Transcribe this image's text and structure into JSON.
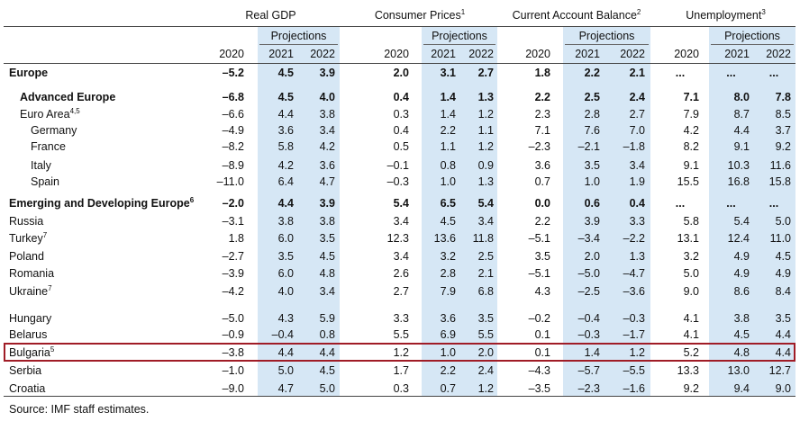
{
  "groups": [
    {
      "label": "Real GDP",
      "sup": ""
    },
    {
      "label": "Consumer Prices",
      "sup": "1"
    },
    {
      "label": "Current Account Balance",
      "sup": "2"
    },
    {
      "label": "Unemployment",
      "sup": "3"
    }
  ],
  "projections_label": "Projections",
  "years": [
    "2020",
    "2021",
    "2022"
  ],
  "rows": [
    {
      "name": "Europe",
      "sup": "",
      "bold": true,
      "indent": 0,
      "values": [
        "–5.2",
        "4.5",
        "3.9",
        "2.0",
        "3.1",
        "2.7",
        "1.8",
        "2.2",
        "2.1",
        "...",
        "...",
        "..."
      ]
    },
    {
      "name": "Advanced Europe",
      "sup": "",
      "bold": true,
      "indent": 1,
      "values": [
        "–6.8",
        "4.5",
        "4.0",
        "0.4",
        "1.4",
        "1.3",
        "2.2",
        "2.5",
        "2.4",
        "7.1",
        "8.0",
        "7.8"
      ]
    },
    {
      "name": "Euro Area",
      "sup": "4,5",
      "bold": false,
      "indent": 1,
      "values": [
        "–6.6",
        "4.4",
        "3.8",
        "0.3",
        "1.4",
        "1.2",
        "2.3",
        "2.8",
        "2.7",
        "7.9",
        "8.7",
        "8.5"
      ]
    },
    {
      "name": "Germany",
      "sup": "",
      "bold": false,
      "indent": 2,
      "values": [
        "–4.9",
        "3.6",
        "3.4",
        "0.4",
        "2.2",
        "1.1",
        "7.1",
        "7.6",
        "7.0",
        "4.2",
        "4.4",
        "3.7"
      ]
    },
    {
      "name": "France",
      "sup": "",
      "bold": false,
      "indent": 2,
      "values": [
        "–8.2",
        "5.8",
        "4.2",
        "0.5",
        "1.1",
        "1.2",
        "–2.3",
        "–2.1",
        "–1.8",
        "8.2",
        "9.1",
        "9.2"
      ]
    },
    {
      "name": "Italy",
      "sup": "",
      "bold": false,
      "indent": 2,
      "values": [
        "–8.9",
        "4.2",
        "3.6",
        "–0.1",
        "0.8",
        "0.9",
        "3.6",
        "3.5",
        "3.4",
        "9.1",
        "10.3",
        "11.6"
      ]
    },
    {
      "name": "Spain",
      "sup": "",
      "bold": false,
      "indent": 2,
      "values": [
        "–11.0",
        "6.4",
        "4.7",
        "–0.3",
        "1.0",
        "1.3",
        "0.7",
        "1.0",
        "1.9",
        "15.5",
        "16.8",
        "15.8"
      ]
    },
    {
      "name": "Emerging and Developing Europe",
      "sup": "6",
      "bold": true,
      "indent": 0,
      "values": [
        "–2.0",
        "4.4",
        "3.9",
        "5.4",
        "6.5",
        "5.4",
        "0.0",
        "0.6",
        "0.4",
        "...",
        "...",
        "..."
      ]
    },
    {
      "name": "Russia",
      "sup": "",
      "bold": false,
      "indent": 0,
      "values": [
        "–3.1",
        "3.8",
        "3.8",
        "3.4",
        "4.5",
        "3.4",
        "2.2",
        "3.9",
        "3.3",
        "5.8",
        "5.4",
        "5.0"
      ]
    },
    {
      "name": "Turkey",
      "sup": "7",
      "bold": false,
      "indent": 0,
      "values": [
        "1.8",
        "6.0",
        "3.5",
        "12.3",
        "13.6",
        "11.8",
        "–5.1",
        "–3.4",
        "–2.2",
        "13.1",
        "12.4",
        "11.0"
      ]
    },
    {
      "name": "Poland",
      "sup": "",
      "bold": false,
      "indent": 0,
      "values": [
        "–2.7",
        "3.5",
        "4.5",
        "3.4",
        "3.2",
        "2.5",
        "3.5",
        "2.0",
        "1.3",
        "3.2",
        "4.9",
        "4.5"
      ]
    },
    {
      "name": "Romania",
      "sup": "",
      "bold": false,
      "indent": 0,
      "values": [
        "–3.9",
        "6.0",
        "4.8",
        "2.6",
        "2.8",
        "2.1",
        "–5.1",
        "–5.0",
        "–4.7",
        "5.0",
        "4.9",
        "4.9"
      ]
    },
    {
      "name": "Ukraine",
      "sup": "7",
      "bold": false,
      "indent": 0,
      "values": [
        "–4.2",
        "4.0",
        "3.4",
        "2.7",
        "7.9",
        "6.8",
        "4.3",
        "–2.5",
        "–3.6",
        "9.0",
        "8.6",
        "8.4"
      ]
    },
    {
      "name": "Hungary",
      "sup": "",
      "bold": false,
      "indent": 0,
      "values": [
        "–5.0",
        "4.3",
        "5.9",
        "3.3",
        "3.6",
        "3.5",
        "–0.2",
        "–0.4",
        "–0.3",
        "4.1",
        "3.8",
        "3.5"
      ]
    },
    {
      "name": "Belarus",
      "sup": "",
      "bold": false,
      "indent": 0,
      "values": [
        "–0.9",
        "–0.4",
        "0.8",
        "5.5",
        "6.9",
        "5.5",
        "0.1",
        "–0.3",
        "–1.7",
        "4.1",
        "4.5",
        "4.4"
      ]
    },
    {
      "name": "Bulgaria",
      "sup": "5",
      "bold": false,
      "indent": 0,
      "highlight": true,
      "values": [
        "–3.8",
        "4.4",
        "4.4",
        "1.2",
        "1.0",
        "2.0",
        "0.1",
        "1.4",
        "1.2",
        "5.2",
        "4.8",
        "4.4"
      ]
    },
    {
      "name": "Serbia",
      "sup": "",
      "bold": false,
      "indent": 0,
      "values": [
        "–1.0",
        "5.0",
        "4.5",
        "1.7",
        "2.2",
        "2.4",
        "–4.3",
        "–5.7",
        "–5.5",
        "13.3",
        "13.0",
        "12.7"
      ]
    },
    {
      "name": "Croatia",
      "sup": "",
      "bold": false,
      "indent": 0,
      "values": [
        "–9.0",
        "4.7",
        "5.0",
        "0.3",
        "0.7",
        "1.2",
        "–3.5",
        "–2.3",
        "–1.6",
        "9.2",
        "9.4",
        "9.0"
      ]
    }
  ],
  "source_note": "Source: IMF staff estimates.",
  "colors": {
    "shade": "#d6e7f5",
    "highlight_border": "#a01c26"
  }
}
